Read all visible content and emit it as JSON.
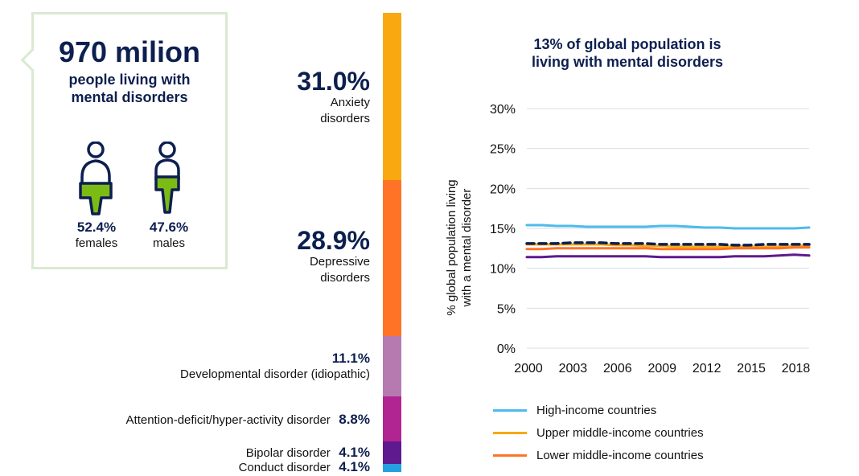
{
  "summary": {
    "headline": "970 milion",
    "subline1": "people living with",
    "subline2": "mental disorders",
    "females_pct": "52.4%",
    "females_label": "females",
    "females_share": 0.524,
    "males_pct": "47.6%",
    "males_label": "males",
    "males_share": 0.476,
    "accent_color": "#7cbb14"
  },
  "disorders": [
    {
      "pct": "31.0%",
      "line1": "Anxiety",
      "line2": "disorders",
      "color": "#f9a90f"
    },
    {
      "pct": "28.9%",
      "line1": "Depressive",
      "line2": "disorders",
      "color": "#ff7327"
    },
    {
      "pct": "11.1%",
      "line1": "Developmental disorder (idiopathic)",
      "color": "#b77ab0"
    },
    {
      "pct": "8.8%",
      "line1": "Attention-deficit/hyper-activity disorder",
      "color": "#b02591"
    },
    {
      "pct": "4.1%",
      "line1": "Bipolar disorder",
      "color": "#5e1a8e"
    },
    {
      "pct": "4.1%",
      "line1": "Conduct disorder",
      "color": "#24a0e0"
    }
  ],
  "chart_data": {
    "type": "line",
    "title": "13% of global population is living with mental disorders",
    "title_line1": "13% of global population is",
    "title_line2": "living with mental disorders",
    "ylabel_line1": "% global population living",
    "ylabel_line2": "with a mental disorder",
    "ylim": [
      0,
      30
    ],
    "yticks": [
      "0%",
      "5%",
      "10%",
      "15%",
      "20%",
      "25%",
      "30%"
    ],
    "xticks": [
      "2000",
      "2003",
      "2006",
      "2009",
      "2012",
      "2015",
      "2018"
    ],
    "x": [
      2000,
      2001,
      2002,
      2003,
      2004,
      2005,
      2006,
      2007,
      2008,
      2009,
      2010,
      2011,
      2012,
      2013,
      2014,
      2015,
      2016,
      2017,
      2018,
      2019
    ],
    "grid": true,
    "series": [
      {
        "name": "High-income countries",
        "color": "#4dbbec",
        "dashed": false,
        "values": [
          15.4,
          15.4,
          15.3,
          15.3,
          15.2,
          15.2,
          15.2,
          15.2,
          15.2,
          15.3,
          15.3,
          15.2,
          15.1,
          15.1,
          15.0,
          15.0,
          15.0,
          15.0,
          15.0,
          15.1
        ]
      },
      {
        "name": "Upper middle-income countries",
        "color": "#f9a90f",
        "dashed": false,
        "values": [
          13.0,
          13.0,
          13.0,
          13.0,
          13.0,
          13.0,
          12.9,
          12.9,
          12.8,
          12.8,
          12.7,
          12.7,
          12.7,
          12.7,
          12.7,
          12.7,
          12.7,
          12.7,
          12.8,
          12.8
        ]
      },
      {
        "name": "Lower middle-income countries",
        "color": "#ff7327",
        "dashed": false,
        "values": [
          12.4,
          12.4,
          12.5,
          12.5,
          12.5,
          12.5,
          12.5,
          12.5,
          12.5,
          12.4,
          12.4,
          12.4,
          12.4,
          12.4,
          12.5,
          12.5,
          12.5,
          12.5,
          12.6,
          12.6
        ]
      },
      {
        "name": "",
        "color": "#5e1a8e",
        "dashed": false,
        "values": [
          11.4,
          11.4,
          11.5,
          11.5,
          11.5,
          11.5,
          11.5,
          11.5,
          11.5,
          11.4,
          11.4,
          11.4,
          11.4,
          11.4,
          11.5,
          11.5,
          11.5,
          11.6,
          11.7,
          11.6
        ]
      },
      {
        "name": "",
        "color": "#0c1f4f",
        "dashed": true,
        "values": [
          13.1,
          13.1,
          13.1,
          13.2,
          13.2,
          13.2,
          13.1,
          13.1,
          13.1,
          13.0,
          13.0,
          13.0,
          13.0,
          13.0,
          12.9,
          12.9,
          13.0,
          13.0,
          13.0,
          13.0
        ]
      }
    ]
  }
}
